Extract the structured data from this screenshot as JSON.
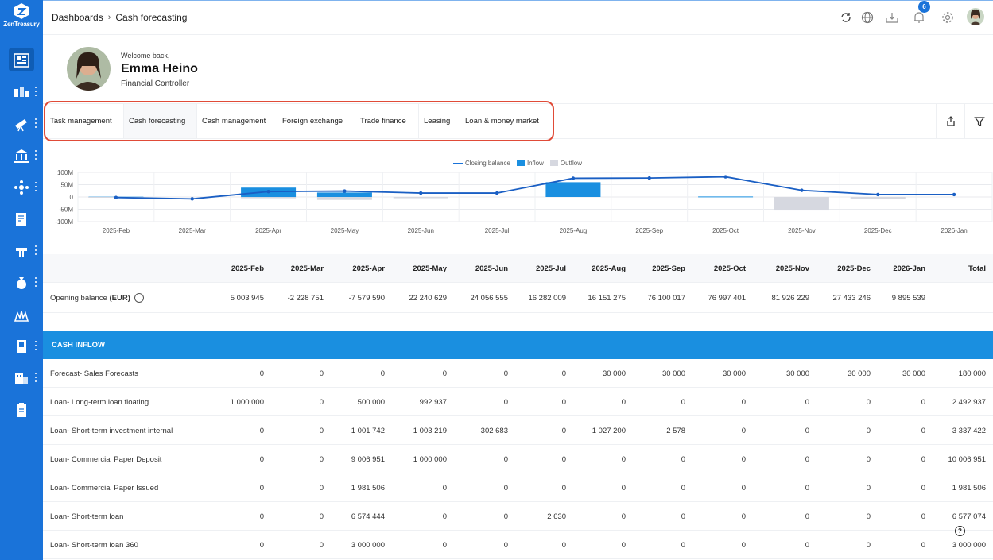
{
  "app": {
    "logo_text": "ZenTreasury"
  },
  "breadcrumb": {
    "parent": "Dashboards",
    "current": "Cash forecasting"
  },
  "header": {
    "notifications_count": "6"
  },
  "welcome": {
    "greeting": "Welcome back,",
    "name": "Emma Heino",
    "role": "Financial Controller"
  },
  "tabs": [
    {
      "label": "Task management"
    },
    {
      "label": "Cash forecasting"
    },
    {
      "label": "Cash management"
    },
    {
      "label": "Foreign exchange"
    },
    {
      "label": "Trade finance"
    },
    {
      "label": "Leasing"
    },
    {
      "label": "Loan & money market"
    }
  ],
  "colors": {
    "brand": "#1a73d9",
    "inflow": "#1a8fe0",
    "outflow": "#d6d8e0",
    "highlight": "#e04b38"
  },
  "chart_data": {
    "type": "bar",
    "legend": [
      "Closing balance",
      "Inflow",
      "Outflow"
    ],
    "legend_position": "top-center",
    "categories": [
      "2025-Feb",
      "2025-Mar",
      "2025-Apr",
      "2025-May",
      "2025-Jun",
      "2025-Jul",
      "2025-Aug",
      "2025-Sep",
      "2025-Oct",
      "2025-Nov",
      "2025-Dec",
      "2026-Jan"
    ],
    "y_ticks": [
      "100M",
      "50M",
      "0",
      "-50M",
      "-100M"
    ],
    "ylim": [
      -100,
      100
    ],
    "series": [
      {
        "name": "Closing balance",
        "type": "line",
        "values": [
          -2.2,
          -7.6,
          22,
          24,
          16,
          16,
          76,
          77,
          82,
          27,
          10,
          10
        ]
      },
      {
        "name": "Inflow",
        "type": "bar",
        "values": [
          1,
          0,
          38,
          18,
          0,
          0,
          60,
          0,
          2,
          0,
          0,
          0
        ]
      },
      {
        "name": "Outflow",
        "type": "bar",
        "values": [
          -3,
          0,
          -5,
          -12,
          -5,
          0,
          0,
          0,
          0,
          -55,
          -8,
          0
        ]
      }
    ]
  },
  "table": {
    "columns": [
      "2025-Feb",
      "2025-Mar",
      "2025-Apr",
      "2025-May",
      "2025-Jun",
      "2025-Jul",
      "2025-Aug",
      "2025-Sep",
      "2025-Oct",
      "2025-Nov",
      "2025-Dec",
      "2026-Jan",
      "Total"
    ],
    "opening": {
      "label": "Opening balance",
      "unit": "(EUR)",
      "info": "…",
      "values": [
        "5 003 945",
        "-2 228 751",
        "-7 579 590",
        "22 240 629",
        "24 056 555",
        "16 282 009",
        "16 151 275",
        "76 100 017",
        "76 997 401",
        "81 926 229",
        "27 433 246",
        "9 895 539",
        ""
      ]
    },
    "section_title": "CASH INFLOW",
    "rows": [
      {
        "label": "Forecast- Sales Forecasts",
        "values": [
          "0",
          "0",
          "0",
          "0",
          "0",
          "0",
          "30 000",
          "30 000",
          "30 000",
          "30 000",
          "30 000",
          "30 000",
          "180 000"
        ]
      },
      {
        "label": "Loan- Long-term loan floating",
        "values": [
          "1 000 000",
          "0",
          "500 000",
          "992 937",
          "0",
          "0",
          "0",
          "0",
          "0",
          "0",
          "0",
          "0",
          "2 492 937"
        ]
      },
      {
        "label": "Loan- Short-term investment internal",
        "values": [
          "0",
          "0",
          "1 001 742",
          "1 003 219",
          "302 683",
          "0",
          "1 027 200",
          "2 578",
          "0",
          "0",
          "0",
          "0",
          "3 337 422"
        ]
      },
      {
        "label": "Loan- Commercial Paper Deposit",
        "values": [
          "0",
          "0",
          "9 006 951",
          "1 000 000",
          "0",
          "0",
          "0",
          "0",
          "0",
          "0",
          "0",
          "0",
          "10 006 951"
        ]
      },
      {
        "label": "Loan- Commercial Paper Issued",
        "values": [
          "0",
          "0",
          "1 981 506",
          "0",
          "0",
          "0",
          "0",
          "0",
          "0",
          "0",
          "0",
          "0",
          "1 981 506"
        ]
      },
      {
        "label": "Loan- Short-term loan",
        "values": [
          "0",
          "0",
          "6 574 444",
          "0",
          "0",
          "2 630",
          "0",
          "0",
          "0",
          "0",
          "0",
          "0",
          "6 577 074"
        ]
      },
      {
        "label": "Loan- Short-term loan 360",
        "values": [
          "0",
          "0",
          "3 000 000",
          "0",
          "0",
          "0",
          "0",
          "0",
          "0",
          "0",
          "0",
          "0",
          "3 000 000"
        ]
      }
    ]
  },
  "help": {
    "symbol": "?"
  }
}
